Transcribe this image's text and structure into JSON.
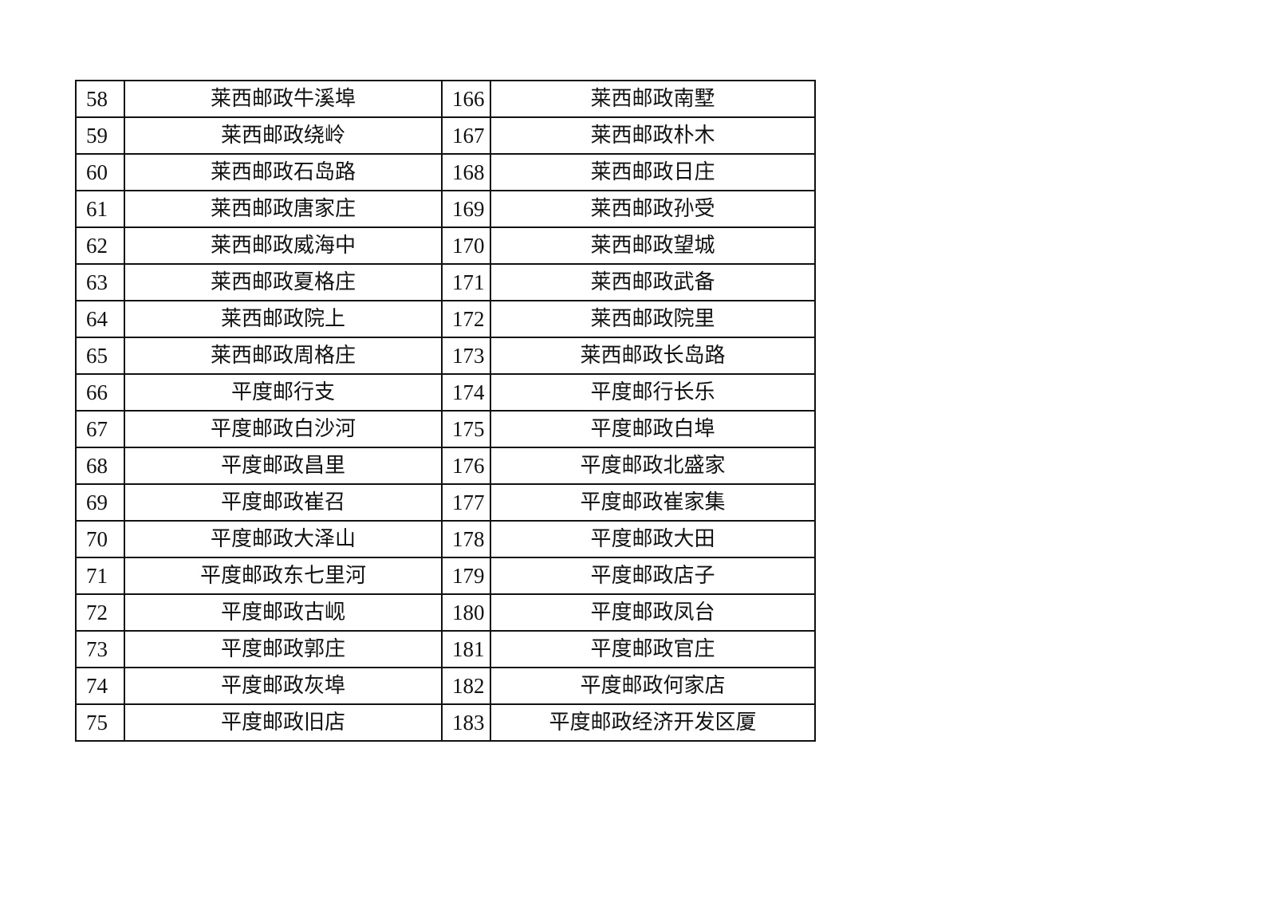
{
  "table": {
    "rows": [
      [
        "58",
        "莱西邮政牛溪埠",
        "166",
        "莱西邮政南墅"
      ],
      [
        "59",
        "莱西邮政绕岭",
        "167",
        "莱西邮政朴木"
      ],
      [
        "60",
        "莱西邮政石岛路",
        "168",
        "莱西邮政日庄"
      ],
      [
        "61",
        "莱西邮政唐家庄",
        "169",
        "莱西邮政孙受"
      ],
      [
        "62",
        "莱西邮政威海中",
        "170",
        "莱西邮政望城"
      ],
      [
        "63",
        "莱西邮政夏格庄",
        "171",
        "莱西邮政武备"
      ],
      [
        "64",
        "莱西邮政院上",
        "172",
        "莱西邮政院里"
      ],
      [
        "65",
        "莱西邮政周格庄",
        "173",
        "莱西邮政长岛路"
      ],
      [
        "66",
        "平度邮行支",
        "174",
        "平度邮行长乐"
      ],
      [
        "67",
        "平度邮政白沙河",
        "175",
        "平度邮政白埠"
      ],
      [
        "68",
        "平度邮政昌里",
        "176",
        "平度邮政北盛家"
      ],
      [
        "69",
        "平度邮政崔召",
        "177",
        "平度邮政崔家集"
      ],
      [
        "70",
        "平度邮政大泽山",
        "178",
        "平度邮政大田"
      ],
      [
        "71",
        "平度邮政东七里河",
        "179",
        "平度邮政店子"
      ],
      [
        "72",
        "平度邮政古岘",
        "180",
        "平度邮政凤台"
      ],
      [
        "73",
        "平度邮政郭庄",
        "181",
        "平度邮政官庄"
      ],
      [
        "74",
        "平度邮政灰埠",
        "182",
        "平度邮政何家店"
      ],
      [
        "75",
        "平度邮政旧店",
        "183",
        "平度邮政经济开发区厦"
      ]
    ]
  }
}
